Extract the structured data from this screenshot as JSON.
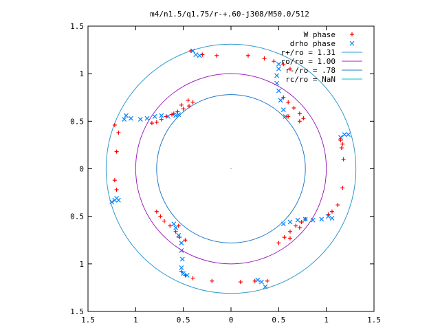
{
  "chart_data": {
    "type": "scatter",
    "title": "m4/n1.5/q1.75/r-+.60-j308/M50.0/512",
    "xlabel": "",
    "ylabel": "",
    "xlim": [
      -1.5,
      1.5
    ],
    "ylim": [
      -1.5,
      1.5
    ],
    "x_ticks": [
      {
        "value": -1.5,
        "label": "1.5"
      },
      {
        "value": -1.0,
        "label": "1"
      },
      {
        "value": -0.5,
        "label": "0.5"
      },
      {
        "value": 0,
        "label": "0"
      },
      {
        "value": 0.5,
        "label": "0.5"
      },
      {
        "value": 1.0,
        "label": "1"
      },
      {
        "value": 1.5,
        "label": "1.5"
      }
    ],
    "y_ticks": [
      {
        "value": 1.5,
        "label": "1.5"
      },
      {
        "value": 1.0,
        "label": "1"
      },
      {
        "value": 0.5,
        "label": "0.5"
      },
      {
        "value": 0,
        "label": "0"
      },
      {
        "value": -0.5,
        "label": "0.5"
      },
      {
        "value": -1.0,
        "label": "1"
      },
      {
        "value": -1.5,
        "label": "1.5"
      }
    ],
    "grid": false,
    "legend_position": "top-right",
    "legend": [
      {
        "label": "W phase",
        "marker": "+",
        "color": "#ff0000"
      },
      {
        "label": "drho phase",
        "marker": "x",
        "color": "#0080ff"
      },
      {
        "label": "r+/ro = 1.31",
        "marker": "line",
        "color": "#3399cc"
      },
      {
        "label": "ro/ro = 1.00",
        "marker": "line",
        "color": "#a020c0"
      },
      {
        "label": "r-/ro = .78",
        "marker": "line",
        "color": "#1e78c8"
      },
      {
        "label": "rc/ro = NaN",
        "marker": "line",
        "color": "#00c0c0"
      }
    ],
    "circles": [
      {
        "name": "r+/ro",
        "r": 1.31,
        "color": "#3399cc"
      },
      {
        "name": "ro/ro",
        "r": 1.0,
        "color": "#a020c0"
      },
      {
        "name": "r-/ro",
        "r": 0.78,
        "color": "#1e78c8"
      }
    ],
    "series": [
      {
        "name": "W phase",
        "color": "#ff0000",
        "points": [
          [
            -0.83,
            0.48
          ],
          [
            -0.78,
            0.49
          ],
          [
            -0.73,
            0.52
          ],
          [
            -0.68,
            0.55
          ],
          [
            -0.62,
            0.57
          ],
          [
            -0.56,
            0.6
          ],
          [
            -0.5,
            0.63
          ],
          [
            -0.44,
            0.66
          ],
          [
            -0.4,
            0.7
          ],
          [
            -0.45,
            0.72
          ],
          [
            -0.52,
            0.67
          ],
          [
            -0.6,
            0.58
          ],
          [
            -1.22,
            0.46
          ],
          [
            -1.18,
            0.38
          ],
          [
            -1.2,
            0.18
          ],
          [
            -1.22,
            -0.12
          ],
          [
            -1.2,
            -0.22
          ],
          [
            -0.42,
            1.24
          ],
          [
            -0.3,
            1.2
          ],
          [
            -0.15,
            1.19
          ],
          [
            0.18,
            1.19
          ],
          [
            0.35,
            1.16
          ],
          [
            0.45,
            1.13
          ],
          [
            0.55,
            1.1
          ],
          [
            0.62,
            1.05
          ],
          [
            0.55,
            0.75
          ],
          [
            0.6,
            0.7
          ],
          [
            0.66,
            0.64
          ],
          [
            0.72,
            0.58
          ],
          [
            0.76,
            0.53
          ],
          [
            0.72,
            0.5
          ],
          [
            0.6,
            0.55
          ],
          [
            1.15,
            0.3
          ],
          [
            1.17,
            0.26
          ],
          [
            1.16,
            0.22
          ],
          [
            1.18,
            0.1
          ],
          [
            1.17,
            -0.2
          ],
          [
            1.12,
            -0.38
          ],
          [
            1.06,
            -0.45
          ],
          [
            1.02,
            -0.48
          ],
          [
            0.5,
            -0.78
          ],
          [
            0.56,
            -0.72
          ],
          [
            0.62,
            -0.66
          ],
          [
            0.68,
            -0.6
          ],
          [
            0.74,
            -0.56
          ],
          [
            0.78,
            -0.53
          ],
          [
            0.72,
            -0.62
          ],
          [
            0.62,
            -0.73
          ],
          [
            0.38,
            -1.18
          ],
          [
            0.25,
            -1.18
          ],
          [
            0.1,
            -1.19
          ],
          [
            -0.2,
            -1.18
          ],
          [
            -0.4,
            -1.15
          ],
          [
            -0.48,
            -1.12
          ],
          [
            -0.52,
            -1.08
          ],
          [
            -0.78,
            -0.45
          ],
          [
            -0.74,
            -0.5
          ],
          [
            -0.7,
            -0.55
          ],
          [
            -0.64,
            -0.6
          ],
          [
            -0.58,
            -0.66
          ],
          [
            -0.54,
            -0.72
          ],
          [
            -0.48,
            -0.75
          ],
          [
            -0.55,
            -0.6
          ]
        ]
      },
      {
        "name": "drho phase",
        "color": "#0080ff",
        "points": [
          [
            -1.12,
            0.52
          ],
          [
            -1.1,
            0.56
          ],
          [
            -1.05,
            0.53
          ],
          [
            -0.95,
            0.52
          ],
          [
            -0.88,
            0.53
          ],
          [
            -0.8,
            0.55
          ],
          [
            -0.73,
            0.56
          ],
          [
            -0.66,
            0.55
          ],
          [
            -0.58,
            0.56
          ],
          [
            -0.55,
            0.57
          ],
          [
            -1.25,
            -0.35
          ],
          [
            -1.22,
            -0.33
          ],
          [
            -1.2,
            -0.31
          ],
          [
            -1.18,
            -0.33
          ],
          [
            -0.4,
            1.24
          ],
          [
            -0.37,
            1.2
          ],
          [
            -0.33,
            1.19
          ],
          [
            0.5,
            1.1
          ],
          [
            0.5,
            1.05
          ],
          [
            0.48,
            0.98
          ],
          [
            0.48,
            0.9
          ],
          [
            0.5,
            0.82
          ],
          [
            0.52,
            0.72
          ],
          [
            0.55,
            0.62
          ],
          [
            0.57,
            0.55
          ],
          [
            1.15,
            0.33
          ],
          [
            1.19,
            0.36
          ],
          [
            1.23,
            0.36
          ],
          [
            0.55,
            -0.58
          ],
          [
            0.62,
            -0.56
          ],
          [
            0.7,
            -0.54
          ],
          [
            0.78,
            -0.53
          ],
          [
            0.86,
            -0.54
          ],
          [
            0.95,
            -0.53
          ],
          [
            1.02,
            -0.5
          ],
          [
            1.06,
            -0.52
          ],
          [
            0.28,
            -1.17
          ],
          [
            0.32,
            -1.19
          ],
          [
            0.36,
            -1.24
          ],
          [
            -0.6,
            -0.58
          ],
          [
            -0.58,
            -0.62
          ],
          [
            -0.55,
            -0.7
          ],
          [
            -0.52,
            -0.78
          ],
          [
            -0.52,
            -0.86
          ],
          [
            -0.51,
            -0.95
          ],
          [
            -0.52,
            -1.04
          ],
          [
            -0.5,
            -1.1
          ],
          [
            -0.46,
            -1.12
          ]
        ]
      }
    ]
  }
}
